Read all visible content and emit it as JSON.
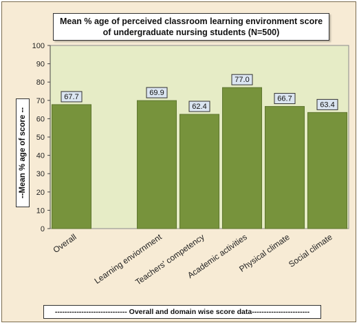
{
  "chart_data": {
    "type": "bar",
    "title_line1": "Mean % age  of  perceived classroom learning environment score",
    "title_line2": "of  undergraduate nursing students (N=500)",
    "ylabel": "--Mean % age of score --",
    "xlabel": "------------------------------ Overall and domain wise score data------------------------",
    "ylim": [
      0,
      100
    ],
    "yticks": [
      "0",
      "10",
      "20",
      "30",
      "40",
      "50",
      "60",
      "70",
      "80",
      "90",
      "100"
    ],
    "grid": false,
    "categories": [
      "Overall",
      "",
      "Learning enviornment",
      "Teachers' competency",
      "Academic activities",
      "Physical climate",
      "Social  climate"
    ],
    "values": [
      67.7,
      null,
      69.9,
      62.4,
      77.0,
      66.7,
      63.4
    ],
    "data_labels": [
      "67.7",
      "",
      "69.9",
      "62.4",
      "77.0",
      "66.7",
      "63.4"
    ],
    "colors": {
      "bar": "#77933c",
      "bar_edge": "#5e752f",
      "plot_bg": "#e6ecc6",
      "frame_bg": "#f7ebd5",
      "label_box": "#dbe5f1"
    }
  }
}
